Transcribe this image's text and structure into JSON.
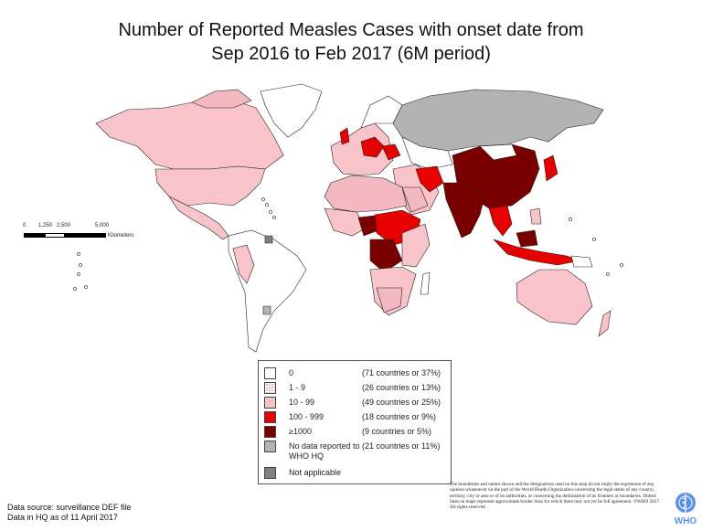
{
  "title": {
    "line1": "Number of Reported Measles Cases with onset date from",
    "line2": "Sep 2016 to Feb 2017 (6M period)"
  },
  "scale_bar": {
    "ticks": [
      "0",
      "1,250",
      "2,500",
      "5,000"
    ],
    "unit": "Kilometers"
  },
  "colors": {
    "zero": "#ffffff",
    "one_to_nine": "#f4b8c0",
    "ten_to_99": "#f8c4ca",
    "hundred_to_999": "#e60000",
    "thousand_plus": "#7a0000",
    "no_data": "#b3b3b3",
    "not_applicable": "#808080"
  },
  "legend": {
    "items": [
      {
        "range": "0",
        "count": "(71 countries or 37%)",
        "color": "#ffffff"
      },
      {
        "range": "1 - 9",
        "count": "(26 countries or 13%)",
        "color": "#f4b8c0",
        "pattern": "hatched"
      },
      {
        "range": "10 - 99",
        "count": "(49 countries or 25%)",
        "color": "#f8c4ca"
      },
      {
        "range": "100 - 999",
        "count": "(18 countries or 9%)",
        "color": "#e60000"
      },
      {
        "range": "≥1000",
        "count": "(9 countries or 5%)",
        "color": "#7a0000"
      },
      {
        "range": "No data reported to WHO HQ",
        "count": "(21 countries or 11%)",
        "color": "#b3b3b3"
      },
      {
        "range": "Not applicable",
        "count": "",
        "color": "#808080"
      }
    ]
  },
  "footer": {
    "source_line1": "Data source: surveillance DEF file",
    "source_line2": "Data in HQ as of 11 April 2017",
    "disclaimer": "The boundaries and names shown and the designations used on this map do not imply the expression of any opinion whatsoever on the part of the World Health Organization concerning the legal status of any country, territory, city or area or of its authorities, or concerning the delimitation of its frontiers or boundaries. Dotted lines on maps represent approximate border lines for which there may not yet be full agreement. ©WHO 2017. All rights reserved.",
    "logo_text": "WHO"
  }
}
